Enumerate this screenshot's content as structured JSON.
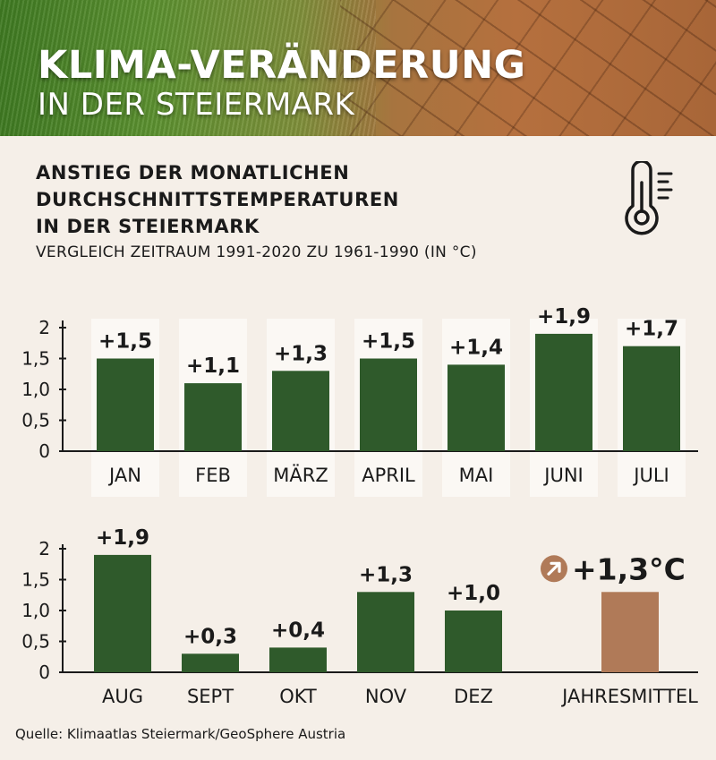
{
  "header": {
    "title": "KLIMA-VERÄNDERUNG",
    "subtitle": "IN DER STEIERMARK"
  },
  "chart": {
    "title_lines": [
      "ANSTIEG DER MONATLICHEN",
      "DURCHSCHNITTSTEMPERATUREN",
      "IN DER STEIERMARK"
    ],
    "subtitle": "VERGLEICH ZEITRAUM 1991-2020 ZU 1961-1990 (IN °C)"
  },
  "source": "Quelle: Klimaatlas Steiermark/GeoSphere Austria",
  "icons": {
    "thermometer": "thermometer-icon",
    "trend": "arrow-up-right-icon"
  },
  "colors": {
    "bar": "#2f5a2b",
    "highlight_bar": "#b07a58",
    "background": "#f5efe8",
    "column_band": "#fbf8f4"
  },
  "chart_data": [
    {
      "type": "bar",
      "categories": [
        "JAN",
        "FEB",
        "MÄRZ",
        "APRIL",
        "MAI",
        "JUNI",
        "JULI"
      ],
      "values": [
        1.5,
        1.1,
        1.3,
        1.5,
        1.4,
        1.9,
        1.7
      ],
      "value_labels": [
        "+1,5",
        "+1,1",
        "+1,3",
        "+1,5",
        "+1,4",
        "+1,9",
        "+1,7"
      ],
      "yticks": [
        "0",
        "0,5",
        "1,0",
        "1,5",
        "2"
      ],
      "ylim": [
        0,
        2
      ]
    },
    {
      "type": "bar",
      "categories": [
        "AUG",
        "SEPT",
        "OKT",
        "NOV",
        "DEZ",
        "JAHRESMITTEL"
      ],
      "values": [
        1.9,
        0.3,
        0.4,
        1.3,
        1.0,
        1.3
      ],
      "value_labels": [
        "+1,9",
        "+0,3",
        "+0,4",
        "+1,3",
        "+1,0",
        "+1,3°C"
      ],
      "highlight_index": 5,
      "yticks": [
        "0",
        "0,5",
        "1,0",
        "1,5",
        "2"
      ],
      "ylim": [
        0,
        2
      ]
    }
  ]
}
